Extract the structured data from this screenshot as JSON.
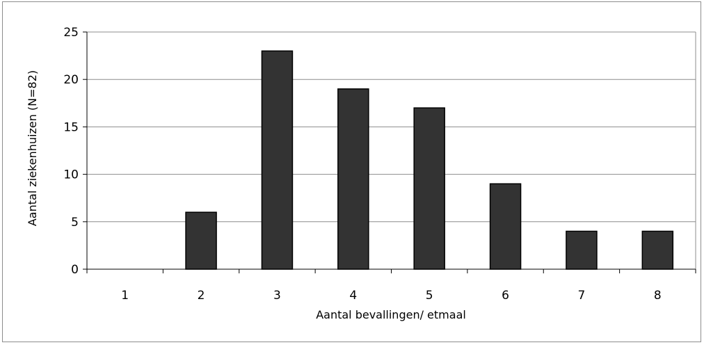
{
  "chart_data": {
    "type": "bar",
    "title": "",
    "xlabel": "Aantal bevallingen/ etmaal",
    "ylabel": "Aantal ziekenhuizen (N=82)",
    "categories": [
      "1",
      "2",
      "3",
      "4",
      "5",
      "6",
      "7",
      "8"
    ],
    "values": [
      0,
      6,
      23,
      19,
      17,
      9,
      4,
      4
    ],
    "ylim": [
      0,
      25
    ],
    "yticks": [
      "0",
      "5",
      "10",
      "15",
      "20",
      "25"
    ],
    "grid": true,
    "legend": "none",
    "bar_color": "#333333"
  }
}
